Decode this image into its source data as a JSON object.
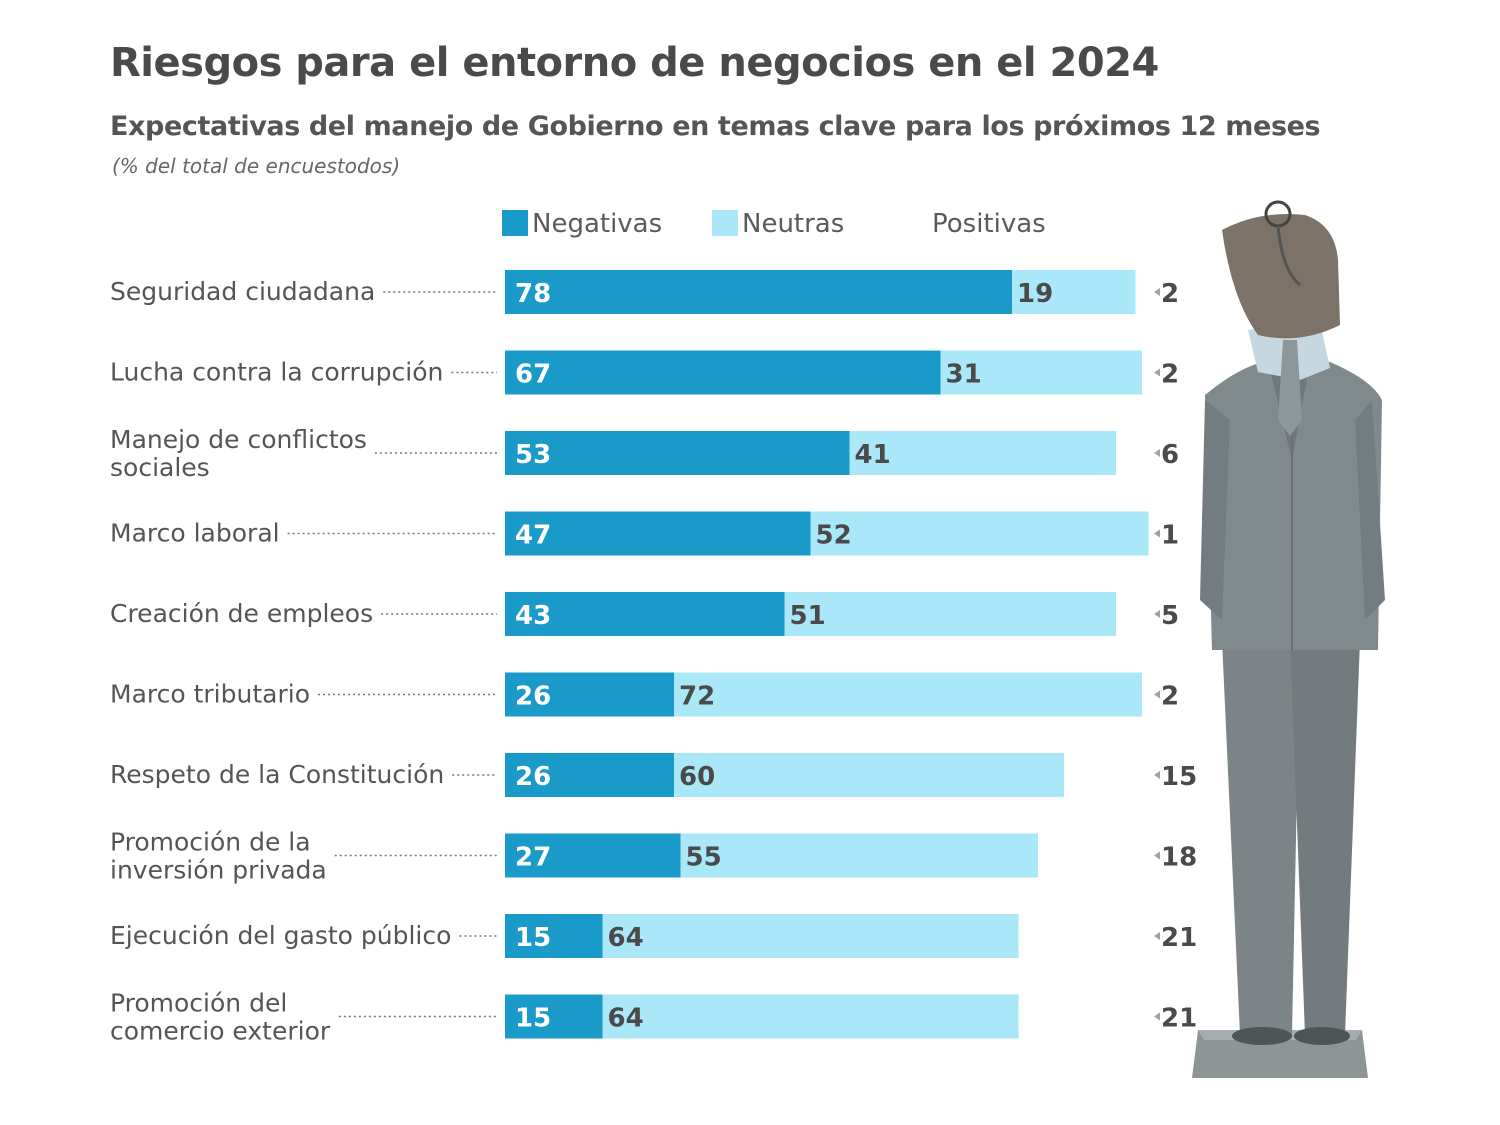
{
  "title": "Riesgos para el entorno de negocios en el 2024",
  "subtitle": "Expectativas del manejo de Gobierno en temas clave para los próximos 12 meses",
  "note": "(% del total de encuestodos)",
  "colors": {
    "negativas": "#1a9ac8",
    "neutras": "#aae7f8",
    "text_on_dark": "#ffffff",
    "text_on_light": "#4a4a4a",
    "label": "#555555",
    "leader": "#777777"
  },
  "illustration": "businessman-standing-figure",
  "chart_data": {
    "type": "bar",
    "orientation": "horizontal",
    "stacked": true,
    "legend": [
      "Negativas",
      "Neutras",
      "Positivas"
    ],
    "legend_position": "top",
    "categories": [
      [
        "Seguridad ciudadana"
      ],
      [
        "Lucha contra la corrupción"
      ],
      [
        "Manejo de conflictos",
        "sociales"
      ],
      [
        "Marco laboral"
      ],
      [
        "Creación de empleos"
      ],
      [
        "Marco tributario"
      ],
      [
        "Respeto de la Constitución"
      ],
      [
        "Promoción de la",
        "inversión privada"
      ],
      [
        "Ejecución del gasto público"
      ],
      [
        "Promoción del",
        "comercio exterior"
      ]
    ],
    "series": [
      {
        "name": "Negativas",
        "values": [
          78,
          67,
          53,
          47,
          43,
          26,
          26,
          27,
          15,
          15
        ]
      },
      {
        "name": "Neutras",
        "values": [
          19,
          31,
          41,
          52,
          51,
          72,
          60,
          55,
          64,
          64
        ]
      },
      {
        "name": "Positivas",
        "values": [
          2,
          2,
          6,
          1,
          5,
          2,
          15,
          18,
          21,
          21
        ]
      }
    ],
    "xlim": [
      0,
      100
    ]
  }
}
